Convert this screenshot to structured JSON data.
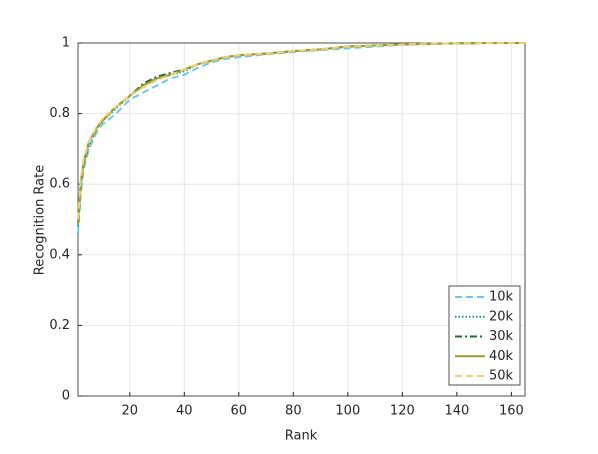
{
  "chart_data": {
    "type": "line",
    "xlabel": "Rank",
    "ylabel": "Recognition Rate",
    "x": [
      1,
      2,
      3,
      5,
      8,
      10,
      15,
      20,
      25,
      30,
      35,
      40,
      45,
      50,
      55,
      60,
      70,
      80,
      90,
      100,
      110,
      120,
      130,
      140,
      150,
      165
    ],
    "series": [
      {
        "name": "10k",
        "color": "#6ec6ee",
        "dash": "dashed",
        "values": [
          0.46,
          0.57,
          0.64,
          0.7,
          0.75,
          0.77,
          0.8,
          0.84,
          0.86,
          0.88,
          0.9,
          0.91,
          0.93,
          0.945,
          0.955,
          0.96,
          0.968,
          0.975,
          0.98,
          0.985,
          0.99,
          0.995,
          0.997,
          0.999,
          1,
          1
        ]
      },
      {
        "name": "20k",
        "color": "#1b9a8c",
        "dash": "dotted",
        "values": [
          0.48,
          0.59,
          0.65,
          0.71,
          0.76,
          0.78,
          0.815,
          0.85,
          0.88,
          0.9,
          0.91,
          0.92,
          0.94,
          0.95,
          0.96,
          0.965,
          0.97,
          0.977,
          0.982,
          0.99,
          0.993,
          0.996,
          0.998,
          0.999,
          1,
          1
        ]
      },
      {
        "name": "30k",
        "color": "#1f6b34",
        "dash": "dashdot",
        "values": [
          0.49,
          0.6,
          0.66,
          0.72,
          0.76,
          0.78,
          0.82,
          0.85,
          0.885,
          0.905,
          0.915,
          0.925,
          0.94,
          0.95,
          0.96,
          0.965,
          0.97,
          0.977,
          0.982,
          0.99,
          0.993,
          0.996,
          0.998,
          0.999,
          1,
          1
        ]
      },
      {
        "name": "40k",
        "color": "#9c9a2c",
        "dash": "solid",
        "values": [
          0.49,
          0.6,
          0.66,
          0.72,
          0.76,
          0.78,
          0.82,
          0.85,
          0.88,
          0.9,
          0.91,
          0.925,
          0.94,
          0.95,
          0.96,
          0.965,
          0.97,
          0.977,
          0.982,
          0.99,
          0.993,
          0.996,
          0.998,
          0.999,
          1,
          1
        ]
      },
      {
        "name": "50k",
        "color": "#efcf72",
        "dash": "dashed",
        "values": [
          0.5,
          0.61,
          0.67,
          0.72,
          0.765,
          0.785,
          0.82,
          0.85,
          0.875,
          0.895,
          0.91,
          0.925,
          0.94,
          0.95,
          0.96,
          0.965,
          0.97,
          0.977,
          0.982,
          0.99,
          0.993,
          0.996,
          0.998,
          0.999,
          1,
          1
        ]
      }
    ],
    "xlim": [
      1,
      165
    ],
    "xticks": [
      20,
      40,
      60,
      80,
      100,
      120,
      140,
      160
    ],
    "ylim": [
      0,
      1
    ],
    "yticks": [
      0,
      0.2,
      0.4,
      0.6,
      0.8,
      1
    ],
    "grid": true,
    "legend": "lower right"
  }
}
